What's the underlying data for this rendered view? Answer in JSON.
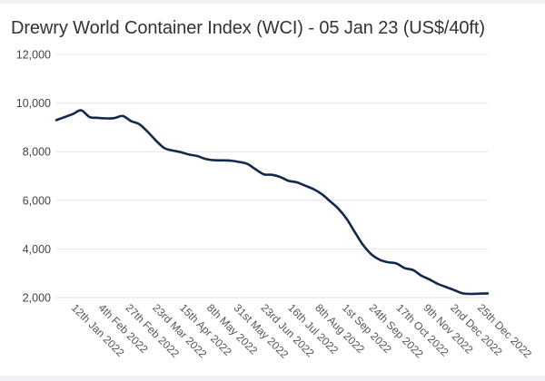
{
  "chart_data": {
    "type": "line",
    "title": "Drewry World Container Index (WCI) - 05 Jan 23 (US$/40ft)",
    "xlabel": "",
    "ylabel": "",
    "ylim": [
      2000,
      12000
    ],
    "yticks": [
      2000,
      4000,
      6000,
      8000,
      10000,
      12000
    ],
    "ytick_labels": [
      "2,000",
      "4,000",
      "6,000",
      "8,000",
      "10,000",
      "12,000"
    ],
    "grid": true,
    "legend": "none",
    "xtick_labels": [
      "12th Jan 2022",
      "4th Feb 2022",
      "27th Feb 2022",
      "23rd Mar 2022",
      "15th Apr 2022",
      "8th May 2022",
      "31st May 2022",
      "23rd Jun 2022",
      "16th Jul 2022",
      "8th Aug 2022",
      "1st Sep 2022",
      "24th Sep 2022",
      "17th Oct 2022",
      "9th Nov 2022",
      "2nd Dec 2022",
      "25th Dec 2022"
    ],
    "x_start": "6th Jan 2022",
    "x_end": "5th Jan 2023",
    "line_color": "#13294b",
    "series": [
      {
        "name": "WCI",
        "day_offsets": [
          0,
          7,
          14,
          21,
          28,
          35,
          42,
          49,
          56,
          63,
          70,
          77,
          84,
          91,
          98,
          105,
          112,
          119,
          126,
          133,
          140,
          147,
          154,
          161,
          168,
          175,
          182,
          189,
          196,
          203,
          210,
          217,
          224,
          231,
          238,
          245,
          252,
          259,
          266,
          273,
          280,
          287,
          294,
          301,
          308,
          315,
          322,
          329,
          336,
          343,
          350,
          357,
          364
        ],
        "values": [
          9300,
          9420,
          9550,
          9700,
          9430,
          9390,
          9370,
          9380,
          9470,
          9260,
          9130,
          8820,
          8460,
          8150,
          8050,
          7980,
          7880,
          7820,
          7700,
          7650,
          7640,
          7630,
          7580,
          7500,
          7280,
          7070,
          7050,
          6960,
          6800,
          6740,
          6600,
          6460,
          6250,
          5960,
          5650,
          5230,
          4680,
          4150,
          3770,
          3550,
          3450,
          3400,
          3210,
          3130,
          2900,
          2740,
          2560,
          2430,
          2300,
          2170,
          2150,
          2160,
          2170
        ]
      }
    ]
  }
}
